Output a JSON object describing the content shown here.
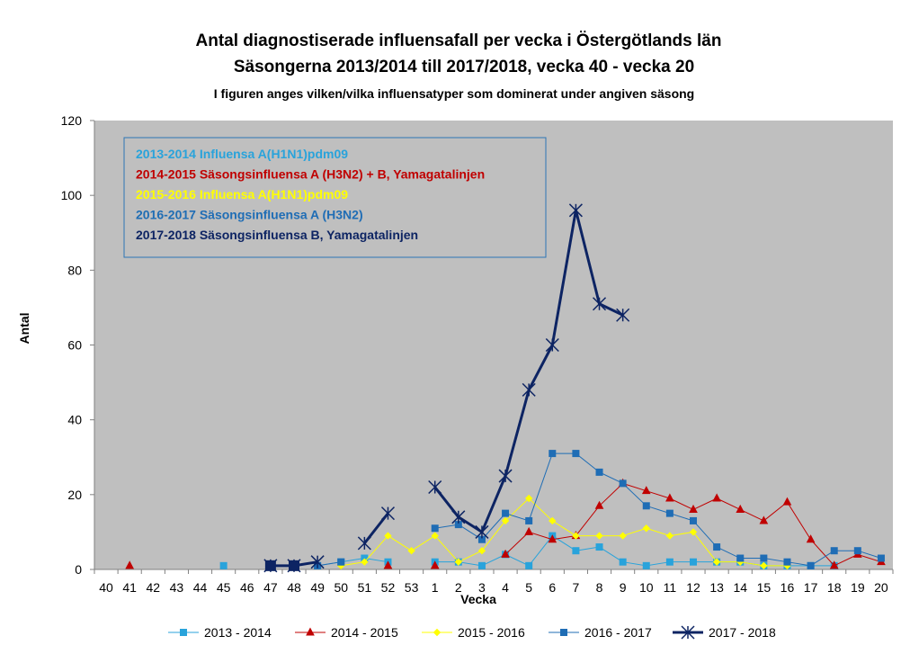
{
  "chart_data": {
    "type": "line",
    "title": "Antal diagnostiserade  influensafall per vecka i Östergötlands län",
    "subtitle": "Säsongerna  2013/2014 till 2017/2018, vecka 40 - vecka 20",
    "note": "I figuren anges vilken/vilka influensatyper som dominerat under  angiven säsong",
    "xlabel": "Vecka",
    "ylabel": "Antal",
    "ylim": [
      0,
      120
    ],
    "yticks": [
      "0",
      "20",
      "40",
      "60",
      "80",
      "100",
      "120"
    ],
    "grid": false,
    "legend_position": "bottom",
    "categories": [
      "40",
      "41",
      "42",
      "43",
      "44",
      "45",
      "46",
      "47",
      "48",
      "49",
      "50",
      "51",
      "52",
      "53",
      "1",
      "2",
      "3",
      "4",
      "5",
      "6",
      "7",
      "8",
      "9",
      "10",
      "11",
      "12",
      "13",
      "14",
      "15",
      "16",
      "17",
      "18",
      "19",
      "20"
    ],
    "series": [
      {
        "name": "2013 - 2014",
        "color": "#29a3db",
        "marker": "square",
        "width": 1,
        "values": [
          null,
          null,
          null,
          null,
          null,
          1,
          null,
          null,
          null,
          1,
          2,
          3,
          2,
          null,
          2,
          2,
          1,
          4,
          1,
          9,
          5,
          6,
          2,
          1,
          2,
          2,
          2,
          2,
          1,
          1,
          1,
          1,
          null,
          null
        ]
      },
      {
        "name": "2014 - 2015",
        "color": "#c00000",
        "marker": "triangle",
        "width": 1,
        "values": [
          null,
          1,
          null,
          null,
          null,
          null,
          null,
          null,
          null,
          null,
          null,
          null,
          1,
          null,
          1,
          null,
          null,
          4,
          10,
          8,
          9,
          17,
          23,
          21,
          19,
          16,
          19,
          16,
          13,
          18,
          8,
          1,
          4,
          2
        ]
      },
      {
        "name": "2015 - 2016",
        "color": "#ffff00",
        "marker": "diamond",
        "width": 1,
        "values": [
          null,
          null,
          null,
          null,
          null,
          null,
          null,
          null,
          null,
          null,
          1,
          2,
          9,
          5,
          9,
          2,
          5,
          13,
          19,
          13,
          9,
          9,
          9,
          11,
          9,
          10,
          2,
          2,
          1,
          1,
          null,
          null,
          null,
          null
        ]
      },
      {
        "name": "2016 - 2017",
        "color": "#1f6db5",
        "marker": "square",
        "width": 1,
        "values": [
          null,
          null,
          null,
          null,
          null,
          null,
          null,
          null,
          null,
          1,
          2,
          null,
          null,
          null,
          11,
          12,
          8,
          15,
          13,
          31,
          31,
          26,
          23,
          17,
          15,
          13,
          6,
          3,
          3,
          2,
          1,
          5,
          5,
          3
        ]
      },
      {
        "name": "2017 - 2018",
        "color": "#0d2463",
        "marker": "star",
        "width": 3,
        "values": [
          null,
          null,
          null,
          null,
          null,
          null,
          null,
          1,
          1,
          2,
          null,
          7,
          15,
          null,
          22,
          14,
          10,
          25,
          48,
          60,
          96,
          71,
          68,
          null,
          null,
          null,
          null,
          null,
          null,
          null,
          null,
          null,
          null,
          null
        ]
      }
    ],
    "annotations": [
      {
        "text": "2013-2014  Influensa A(H1N1)pdm09",
        "color": "#29a3db"
      },
      {
        "text": "2014-2015  Säsongsinfluensa A (H3N2) + B, Yamagatalinjen",
        "color": "#c00000"
      },
      {
        "text": "2015-2016  Influensa A(H1N1)pdm09",
        "color": "#ffff00"
      },
      {
        "text": "2016-2017  Säsongsinfluensa A (H3N2)",
        "color": "#1f6db5"
      },
      {
        "text": "2017-2018  Säsongsinfluensa B, Yamagatalinjen",
        "color": "#0d2463"
      }
    ],
    "colors": {
      "plot_background": "#bfbfbf",
      "annotation_border": "#2e75b6"
    }
  }
}
